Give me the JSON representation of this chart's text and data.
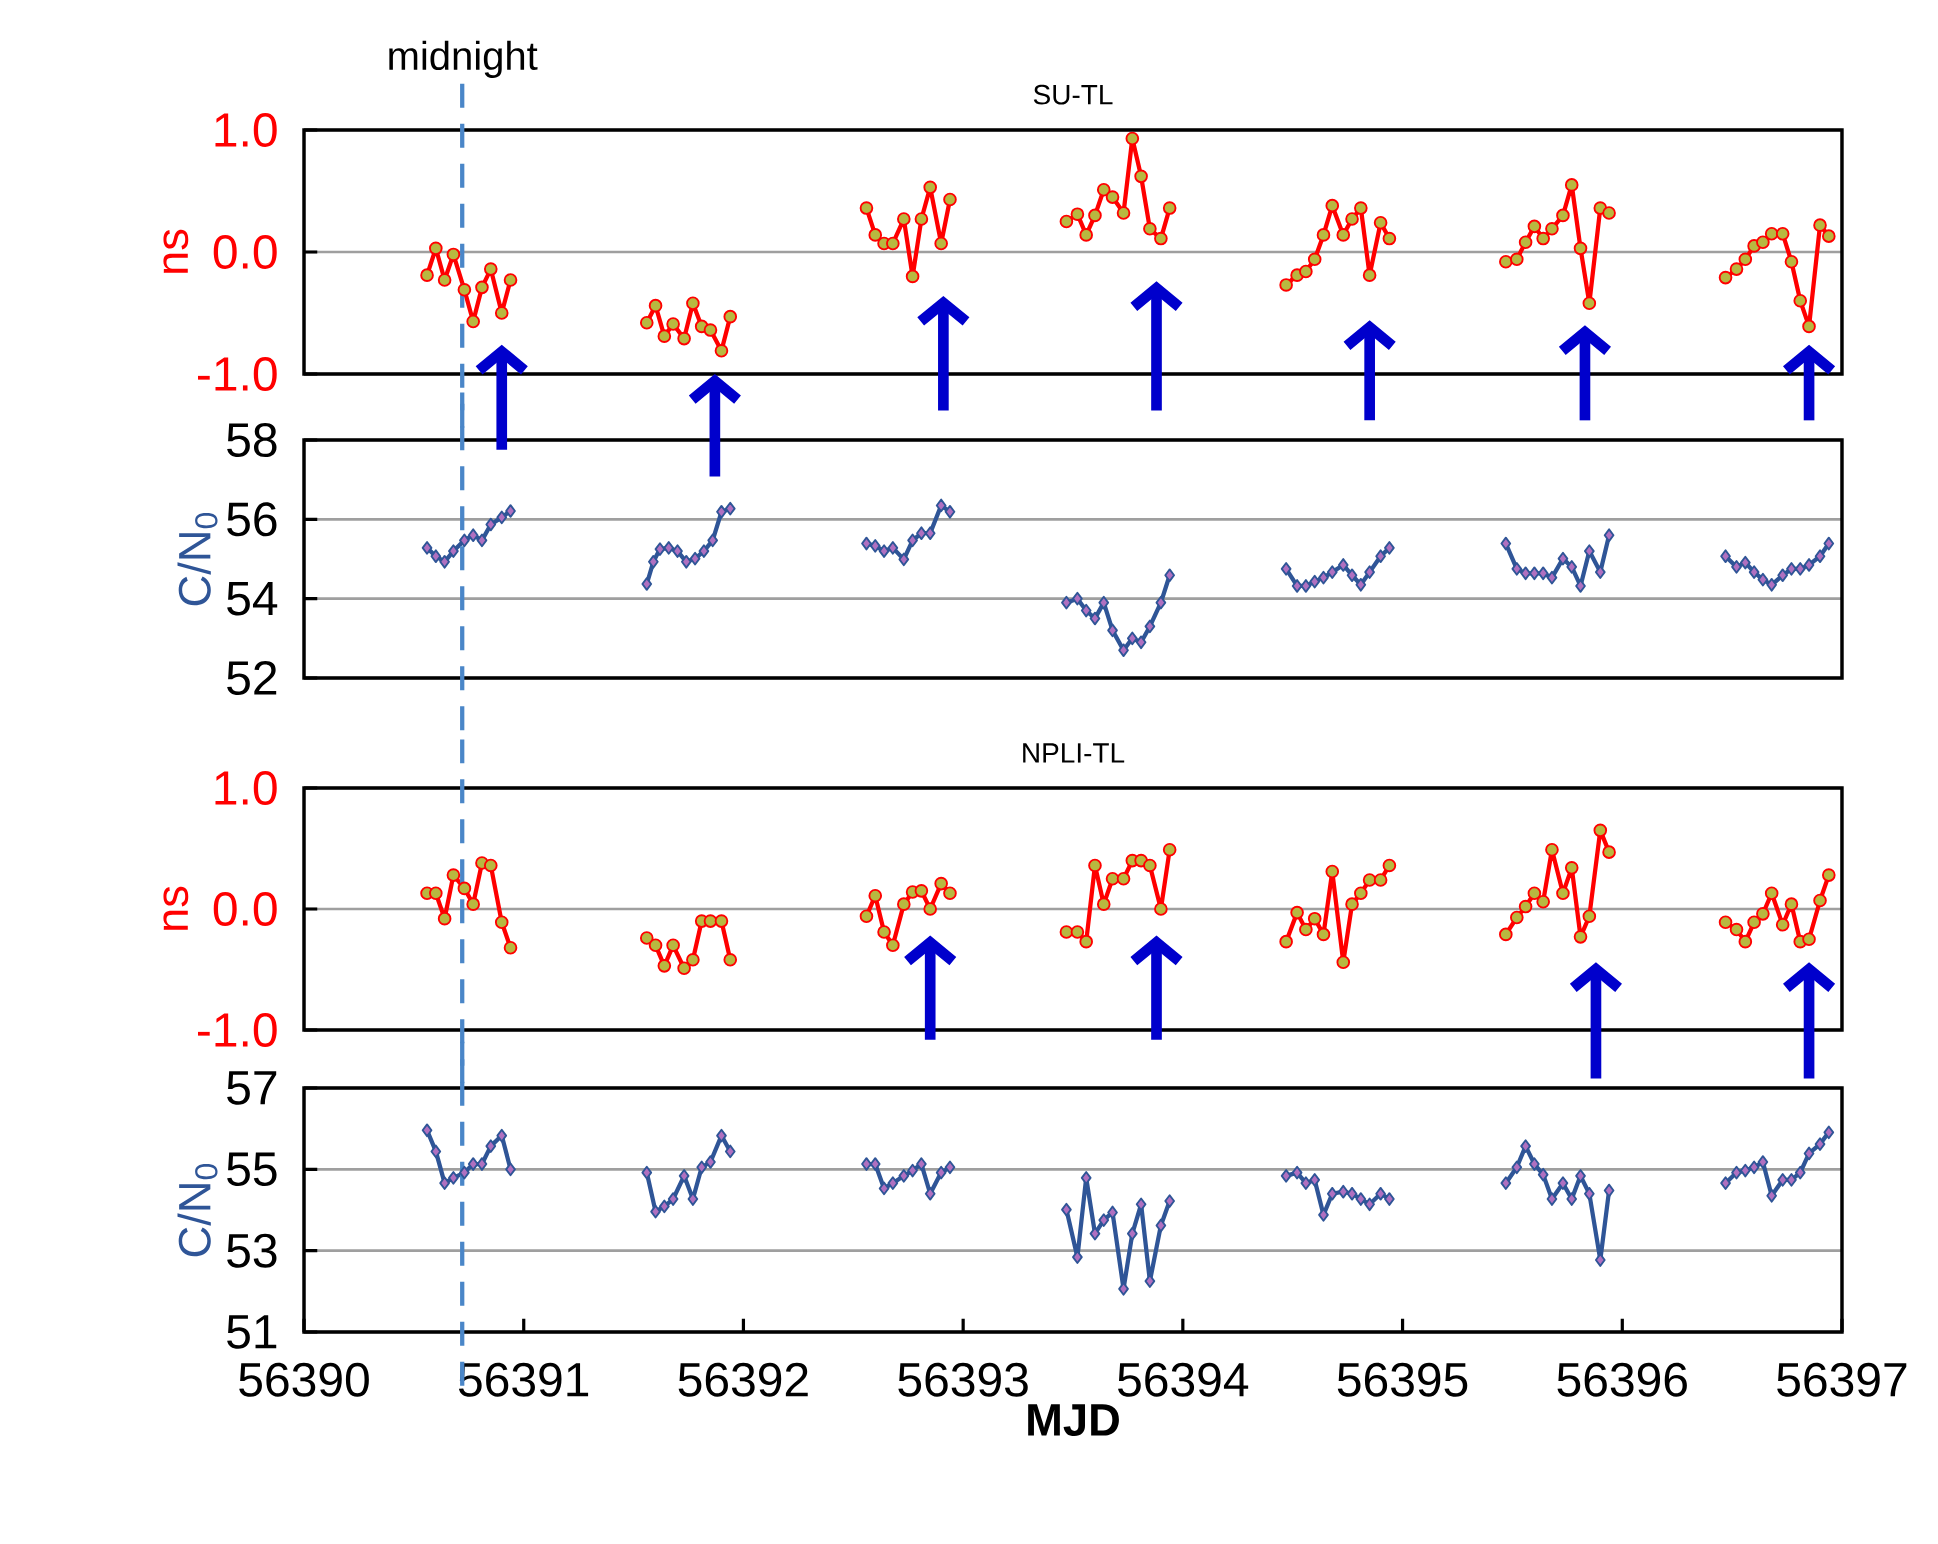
{
  "chart_data": [
    {
      "type": "line",
      "title": "SU-TL",
      "ylabel": "ns",
      "xlim": [
        56390,
        56397
      ],
      "ylim": [
        -1,
        1
      ],
      "yticks": [
        {
          "value": -1,
          "label": "-1.0"
        },
        {
          "value": 0,
          "label": "0.0"
        },
        {
          "value": 1,
          "label": "1.0"
        }
      ],
      "grid": "y",
      "tick_labels": "y",
      "ref_lines": [
        {
          "axis": "x",
          "value": 56390.72,
          "label": "midnight",
          "color": "#4a86c8",
          "line_style": "dashed"
        }
      ],
      "series": [
        {
          "color": "#ff0000",
          "marker": "circle",
          "x": [
            56390.56,
            56390.6,
            56390.64,
            56390.68,
            56390.73,
            56390.77,
            56390.81,
            56390.85,
            56390.9,
            56390.94,
            56391.2,
            56391.56,
            56391.6,
            56391.64,
            56391.68,
            56391.73,
            56391.77,
            56391.81,
            56391.85,
            56391.9,
            56391.94,
            56392.2,
            56392.56,
            56392.6,
            56392.64,
            56392.68,
            56392.73,
            56392.77,
            56392.81,
            56392.85,
            56392.9,
            56392.94,
            56393.2,
            56393.47,
            56393.52,
            56393.56,
            56393.6,
            56393.64,
            56393.68,
            56393.73,
            56393.77,
            56393.81,
            56393.85,
            56393.9,
            56393.94,
            56394.2,
            56394.47,
            56394.52,
            56394.56,
            56394.6,
            56394.64,
            56394.68,
            56394.73,
            56394.77,
            56394.81,
            56394.85,
            56394.9,
            56394.94,
            56395.2,
            56395.47,
            56395.52,
            56395.56,
            56395.6,
            56395.64,
            56395.68,
            56395.73,
            56395.77,
            56395.81,
            56395.85,
            56395.9,
            56395.94,
            56396.2,
            56396.47,
            56396.52,
            56396.56,
            56396.6,
            56396.64,
            56396.68,
            56396.73,
            56396.77,
            56396.81,
            56396.85,
            56396.9,
            56396.94
          ],
          "values": [
            -0.19,
            0.03,
            -0.23,
            -0.02,
            -0.31,
            -0.57,
            -0.29,
            -0.14,
            -0.5,
            -0.23,
            null,
            -0.58,
            -0.44,
            -0.69,
            -0.59,
            -0.71,
            -0.42,
            -0.61,
            -0.64,
            -0.81,
            -0.53,
            null,
            0.36,
            0.14,
            0.07,
            0.07,
            0.27,
            -0.2,
            0.27,
            0.53,
            0.07,
            0.43,
            null,
            0.25,
            0.31,
            0.14,
            0.3,
            0.51,
            0.45,
            0.32,
            0.93,
            0.62,
            0.19,
            0.11,
            0.36,
            null,
            -0.27,
            -0.19,
            -0.16,
            -0.06,
            0.14,
            0.38,
            0.14,
            0.27,
            0.36,
            -0.19,
            0.24,
            0.11,
            null,
            -0.08,
            -0.06,
            0.08,
            0.21,
            0.11,
            0.19,
            0.3,
            0.55,
            0.03,
            -0.42,
            0.36,
            0.32,
            null,
            -0.21,
            -0.14,
            -0.06,
            0.05,
            0.08,
            0.15,
            0.15,
            -0.08,
            -0.4,
            -0.61,
            0.22,
            0.13
          ]
        }
      ]
    },
    {
      "type": "line",
      "ylabel": "C/N$_{0}$",
      "xlim": [
        56390,
        56397
      ],
      "ylim": [
        52,
        58
      ],
      "yticks": [
        52,
        54,
        56,
        58
      ],
      "grid": "y",
      "tick_labels": "y",
      "ref_lines": [
        {
          "axis": "x",
          "value": 56390.72,
          "color": "#4a86c8",
          "line_style": "dashed"
        }
      ],
      "series": [
        {
          "color": "#2f5597",
          "marker": "diamond",
          "x": [
            56390.56,
            56390.6,
            56390.64,
            56390.68,
            56390.73,
            56390.77,
            56390.81,
            56390.85,
            56390.9,
            56390.94,
            56391.2,
            56391.56,
            56391.59,
            56391.62,
            56391.66,
            56391.7,
            56391.74,
            56391.78,
            56391.82,
            56391.86,
            56391.9,
            56391.94,
            56392.2,
            56392.56,
            56392.6,
            56392.64,
            56392.68,
            56392.73,
            56392.77,
            56392.81,
            56392.85,
            56392.9,
            56392.94,
            56393.2,
            56393.47,
            56393.52,
            56393.56,
            56393.6,
            56393.64,
            56393.68,
            56393.73,
            56393.77,
            56393.81,
            56393.85,
            56393.9,
            56393.94,
            56394.2,
            56394.47,
            56394.52,
            56394.56,
            56394.6,
            56394.64,
            56394.68,
            56394.73,
            56394.77,
            56394.81,
            56394.85,
            56394.9,
            56394.94,
            56395.2,
            56395.47,
            56395.52,
            56395.56,
            56395.6,
            56395.64,
            56395.68,
            56395.73,
            56395.77,
            56395.81,
            56395.85,
            56395.9,
            56395.94,
            56396.2,
            56396.47,
            56396.52,
            56396.56,
            56396.6,
            56396.64,
            56396.68,
            56396.73,
            56396.77,
            56396.81,
            56396.85,
            56396.9,
            56396.94
          ],
          "values": [
            55.28,
            55.07,
            54.93,
            55.2,
            55.47,
            55.6,
            55.47,
            55.87,
            56.05,
            56.21,
            null,
            54.37,
            54.93,
            55.25,
            55.28,
            55.2,
            54.93,
            55.01,
            55.2,
            55.47,
            56.19,
            56.27,
            null,
            55.39,
            55.33,
            55.2,
            55.28,
            54.99,
            55.47,
            55.65,
            55.65,
            56.35,
            56.19,
            null,
            53.9,
            54.0,
            53.7,
            53.5,
            53.9,
            53.2,
            52.7,
            53.0,
            52.9,
            53.3,
            53.9,
            54.59,
            null,
            54.75,
            54.32,
            54.32,
            54.43,
            54.53,
            54.67,
            54.85,
            54.59,
            54.35,
            54.67,
            55.07,
            55.28,
            null,
            55.39,
            54.75,
            54.64,
            54.64,
            54.64,
            54.53,
            55.01,
            54.8,
            54.32,
            55.2,
            54.67,
            55.6,
            null,
            55.07,
            54.8,
            54.91,
            54.67,
            54.48,
            54.35,
            54.59,
            54.75,
            54.75,
            54.85,
            55.07,
            55.39
          ]
        }
      ]
    },
    {
      "type": "line",
      "title": "NPLI-TL",
      "ylabel": "ns",
      "xlim": [
        56390,
        56397
      ],
      "ylim": [
        -1,
        1
      ],
      "yticks": [
        {
          "value": -1,
          "label": "-1.0"
        },
        {
          "value": 0,
          "label": "0.0"
        },
        {
          "value": 1,
          "label": "1.0"
        }
      ],
      "grid": "y",
      "tick_labels": "y",
      "ref_lines": [
        {
          "axis": "x",
          "value": 56390.72,
          "color": "#4a86c8",
          "line_style": "dashed"
        }
      ],
      "series": [
        {
          "color": "#ff0000",
          "marker": "circle",
          "x": [
            56390.56,
            56390.6,
            56390.64,
            56390.68,
            56390.73,
            56390.77,
            56390.81,
            56390.85,
            56390.9,
            56390.94,
            56391.2,
            56391.56,
            56391.6,
            56391.64,
            56391.68,
            56391.73,
            56391.77,
            56391.81,
            56391.85,
            56391.9,
            56391.94,
            56392.2,
            56392.56,
            56392.6,
            56392.64,
            56392.68,
            56392.73,
            56392.77,
            56392.81,
            56392.85,
            56392.9,
            56392.94,
            56393.2,
            56393.47,
            56393.52,
            56393.56,
            56393.6,
            56393.64,
            56393.68,
            56393.73,
            56393.77,
            56393.81,
            56393.85,
            56393.9,
            56393.94,
            56394.2,
            56394.47,
            56394.52,
            56394.56,
            56394.6,
            56394.64,
            56394.68,
            56394.73,
            56394.77,
            56394.81,
            56394.85,
            56394.9,
            56394.94,
            56395.2,
            56395.47,
            56395.52,
            56395.56,
            56395.6,
            56395.64,
            56395.68,
            56395.73,
            56395.77,
            56395.81,
            56395.85,
            56395.9,
            56395.94,
            56396.2,
            56396.47,
            56396.52,
            56396.56,
            56396.6,
            56396.64,
            56396.68,
            56396.73,
            56396.77,
            56396.81,
            56396.85,
            56396.9,
            56396.94
          ],
          "values": [
            0.13,
            0.13,
            -0.08,
            0.28,
            0.17,
            0.04,
            0.38,
            0.36,
            -0.11,
            -0.32,
            null,
            -0.24,
            -0.3,
            -0.47,
            -0.3,
            -0.49,
            -0.42,
            -0.1,
            -0.1,
            -0.1,
            -0.42,
            null,
            -0.06,
            0.11,
            -0.19,
            -0.3,
            0.04,
            0.14,
            0.15,
            0.0,
            0.21,
            0.13,
            null,
            -0.19,
            -0.19,
            -0.27,
            0.36,
            0.04,
            0.25,
            0.25,
            0.4,
            0.4,
            0.36,
            0.0,
            0.49,
            null,
            -0.27,
            -0.03,
            -0.17,
            -0.08,
            -0.21,
            0.31,
            -0.44,
            0.04,
            0.13,
            0.24,
            0.24,
            0.36,
            null,
            -0.21,
            -0.07,
            0.02,
            0.13,
            0.06,
            0.49,
            0.13,
            0.34,
            -0.23,
            -0.06,
            0.65,
            0.47,
            null,
            -0.11,
            -0.17,
            -0.27,
            -0.11,
            -0.04,
            0.13,
            -0.13,
            0.04,
            -0.27,
            -0.25,
            0.07,
            0.28
          ]
        }
      ]
    },
    {
      "type": "line",
      "ylabel": "C/N$_{0}$",
      "xlabel": "MJD",
      "xlim": [
        56390,
        56397
      ],
      "xticks": [
        56390,
        56391,
        56392,
        56393,
        56394,
        56395,
        56396,
        56397
      ],
      "ylim": [
        51,
        57
      ],
      "yticks": [
        51,
        53,
        55,
        57
      ],
      "grid": "y",
      "ref_lines": [
        {
          "axis": "x",
          "value": 56390.72,
          "color": "#4a86c8",
          "line_style": "dashed"
        }
      ],
      "series": [
        {
          "color": "#2f5597",
          "marker": "diamond",
          "x": [
            56390.56,
            56390.6,
            56390.64,
            56390.68,
            56390.73,
            56390.77,
            56390.81,
            56390.85,
            56390.9,
            56390.94,
            56391.2,
            56391.56,
            56391.6,
            56391.64,
            56391.68,
            56391.73,
            56391.77,
            56391.81,
            56391.85,
            56391.9,
            56391.94,
            56392.2,
            56392.56,
            56392.6,
            56392.64,
            56392.68,
            56392.73,
            56392.77,
            56392.81,
            56392.85,
            56392.9,
            56392.94,
            56393.2,
            56393.47,
            56393.52,
            56393.56,
            56393.6,
            56393.64,
            56393.68,
            56393.73,
            56393.77,
            56393.81,
            56393.85,
            56393.9,
            56393.94,
            56394.2,
            56394.47,
            56394.52,
            56394.56,
            56394.6,
            56394.64,
            56394.68,
            56394.73,
            56394.77,
            56394.81,
            56394.85,
            56394.9,
            56394.94,
            56395.2,
            56395.47,
            56395.52,
            56395.56,
            56395.6,
            56395.64,
            56395.68,
            56395.73,
            56395.77,
            56395.81,
            56395.85,
            56395.9,
            56395.94,
            56396.2,
            56396.47,
            56396.52,
            56396.56,
            56396.6,
            56396.64,
            56396.68,
            56396.73,
            56396.77,
            56396.81,
            56396.85,
            56396.9,
            56396.94
          ],
          "values": [
            55.96,
            55.44,
            54.66,
            54.79,
            54.92,
            55.13,
            55.13,
            55.57,
            55.83,
            55.0,
            null,
            54.92,
            53.96,
            54.09,
            54.27,
            54.84,
            54.27,
            55.05,
            55.18,
            55.83,
            55.44,
            null,
            55.13,
            55.13,
            54.53,
            54.66,
            54.84,
            54.97,
            55.13,
            54.4,
            54.92,
            55.05,
            null,
            54.01,
            52.84,
            54.79,
            53.42,
            53.75,
            53.94,
            52.06,
            53.42,
            54.14,
            52.25,
            53.62,
            54.22,
            null,
            54.84,
            54.92,
            54.66,
            54.74,
            53.88,
            54.4,
            54.45,
            54.4,
            54.27,
            54.14,
            54.4,
            54.27,
            null,
            54.66,
            55.05,
            55.57,
            55.13,
            54.87,
            54.27,
            54.66,
            54.27,
            54.84,
            54.4,
            52.77,
            54.48,
            null,
            54.66,
            54.92,
            54.97,
            55.05,
            55.18,
            54.35,
            54.74,
            54.74,
            54.92,
            55.39,
            55.62,
            55.91
          ]
        }
      ]
    }
  ]
}
